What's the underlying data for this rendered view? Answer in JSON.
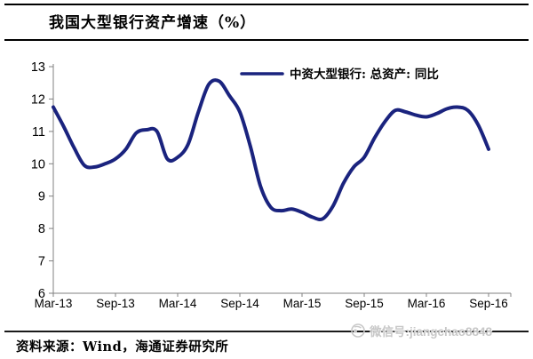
{
  "header": {
    "title": "我国大型银行资产增速（%）"
  },
  "legend": {
    "label": "中资大型银行: 总资产: 同比"
  },
  "footer": {
    "source": "资料来源：Wind，海通证券研究所"
  },
  "watermark": {
    "icon": "wechat-logo",
    "text": "微信号:jiangchao8848"
  },
  "colors": {
    "line": "#1a237e",
    "axis": "#808080",
    "tick_text": "#000000",
    "watermark": "#c8c8c8"
  },
  "chart_data": {
    "type": "line",
    "title": "我国大型银行资产增速（%）",
    "xlabel": "",
    "ylabel": "",
    "ylim": [
      6,
      13
    ],
    "ytick_step": 1,
    "grid": false,
    "legend_position": "top-center",
    "categories": [
      "Mar-13",
      "Apr-13",
      "May-13",
      "Jun-13",
      "Jul-13",
      "Aug-13",
      "Sep-13",
      "Oct-13",
      "Nov-13",
      "Dec-13",
      "Jan-14",
      "Feb-14",
      "Mar-14",
      "Apr-14",
      "May-14",
      "Jun-14",
      "Jul-14",
      "Aug-14",
      "Sep-14",
      "Oct-14",
      "Nov-14",
      "Dec-14",
      "Jan-15",
      "Feb-15",
      "Mar-15",
      "Apr-15",
      "May-15",
      "Jun-15",
      "Jul-15",
      "Aug-15",
      "Sep-15",
      "Oct-15",
      "Nov-15",
      "Dec-15",
      "Jan-16",
      "Feb-16",
      "Mar-16",
      "Apr-16",
      "May-16",
      "Jun-16",
      "Jul-16",
      "Aug-16",
      "Sep-16"
    ],
    "x_tick_labels": [
      "Mar-13",
      "Sep-13",
      "Mar-14",
      "Sep-14",
      "Mar-15",
      "Sep-15",
      "Mar-16",
      "Sep-16"
    ],
    "series": [
      {
        "name": "中资大型银行: 总资产: 同比",
        "values": [
          11.75,
          11.15,
          10.5,
          9.95,
          9.9,
          10.0,
          10.15,
          10.45,
          10.95,
          11.05,
          11.0,
          10.15,
          10.2,
          10.6,
          11.6,
          12.45,
          12.55,
          12.1,
          11.6,
          10.55,
          9.3,
          8.65,
          8.55,
          8.6,
          8.5,
          8.35,
          8.3,
          8.7,
          9.4,
          9.9,
          10.2,
          10.8,
          11.3,
          11.65,
          11.6,
          11.5,
          11.45,
          11.55,
          11.7,
          11.75,
          11.65,
          11.2,
          10.45
        ]
      }
    ]
  }
}
